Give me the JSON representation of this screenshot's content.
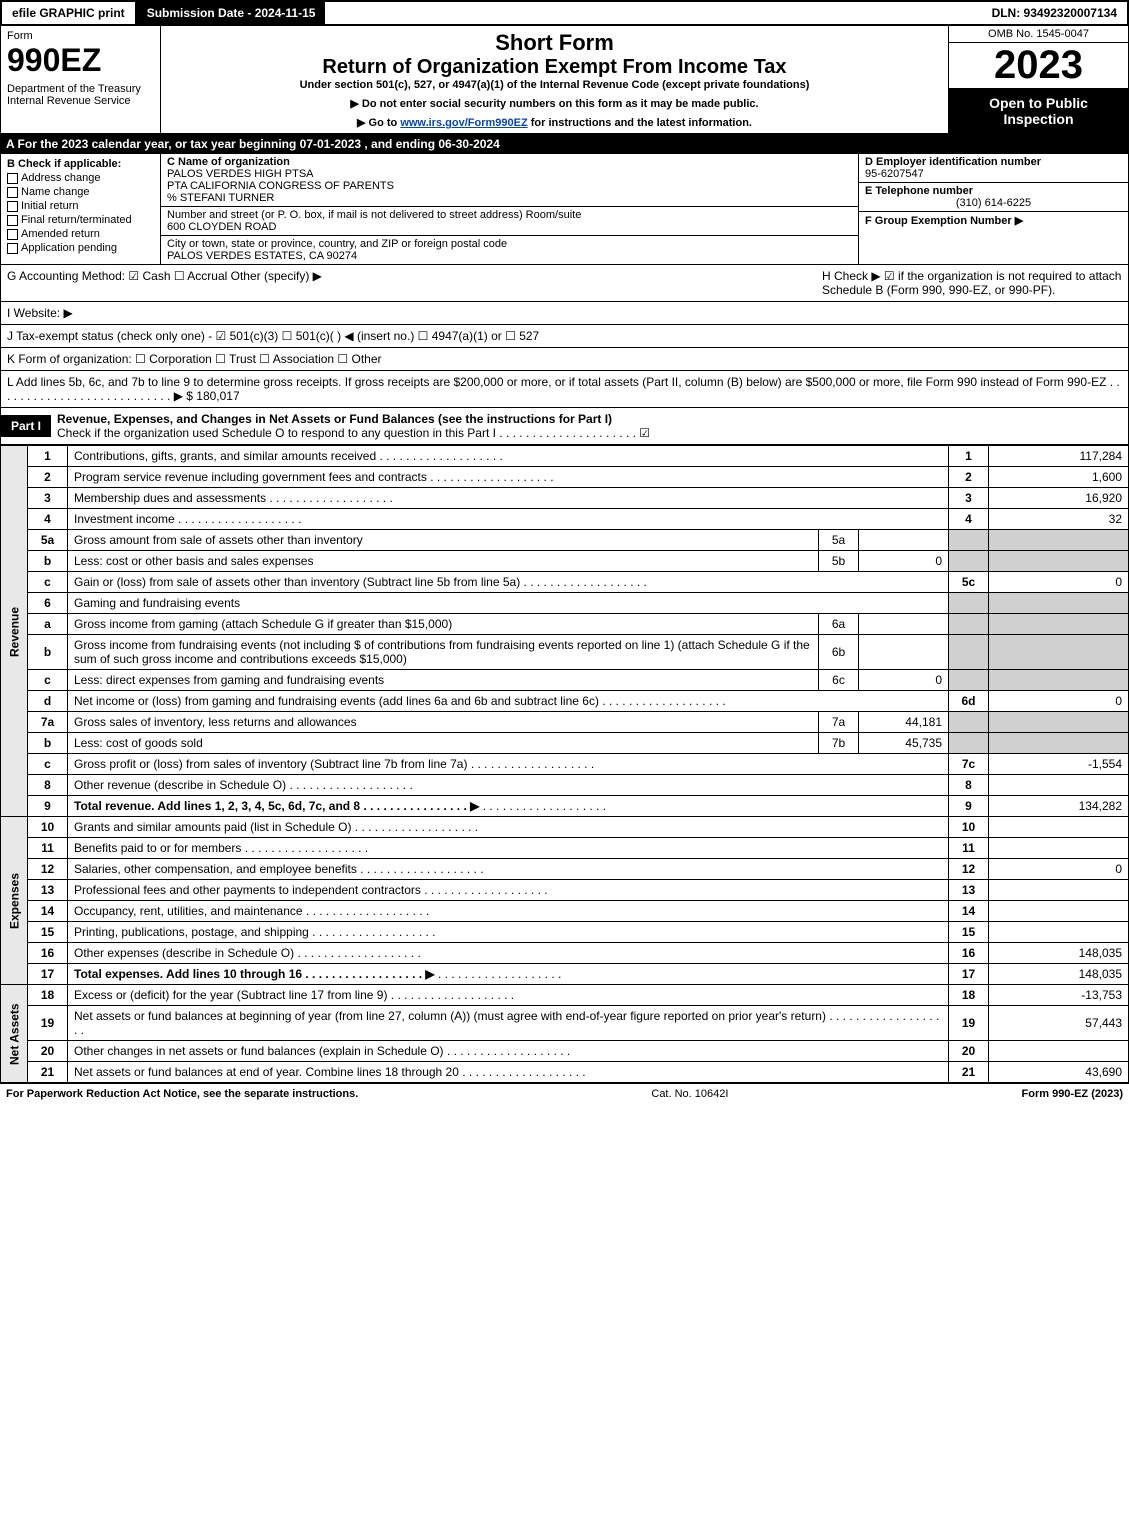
{
  "topbar": {
    "efile": "efile GRAPHIC print",
    "subdate": "Submission Date - 2024-11-15",
    "dln": "DLN: 93492320007134"
  },
  "hdr": {
    "form": "Form",
    "num": "990EZ",
    "dept": "Department of the Treasury\nInternal Revenue Service",
    "t1": "Short Form",
    "t2": "Return of Organization Exempt From Income Tax",
    "sub": "Under section 501(c), 527, or 4947(a)(1) of the Internal Revenue Code (except private foundations)",
    "note1": "▶ Do not enter social security numbers on this form as it may be made public.",
    "note2": "▶ Go to www.irs.gov/Form990EZ for instructions and the latest information.",
    "omb": "OMB No. 1545-0047",
    "yr": "2023",
    "badge": "Open to Public Inspection"
  },
  "A": "A  For the 2023 calendar year, or tax year beginning 07-01-2023 , and ending 06-30-2024",
  "B": {
    "hdr": "B  Check if applicable:",
    "opts": [
      "Address change",
      "Name change",
      "Initial return",
      "Final return/terminated",
      "Amended return",
      "Application pending"
    ]
  },
  "C": {
    "label": "C Name of organization",
    "name": "PALOS VERDES HIGH PTSA\nPTA CALIFORNIA CONGRESS OF PARENTS\n% STEFANI TURNER",
    "street_label": "Number and street (or P. O. box, if mail is not delivered to street address)       Room/suite",
    "street": "600 CLOYDEN ROAD",
    "city_label": "City or town, state or province, country, and ZIP or foreign postal code",
    "city": "PALOS VERDES ESTATES, CA  90274"
  },
  "D": {
    "label": "D Employer identification number",
    "val": "95-6207547"
  },
  "E": {
    "label": "E Telephone number",
    "val": "(310) 614-6225"
  },
  "F": {
    "label": "F Group Exemption Number  ▶",
    "val": ""
  },
  "G": "G Accounting Method:  ☑ Cash  ☐ Accrual   Other (specify) ▶",
  "H": "H   Check ▶ ☑ if the organization is not required to attach Schedule B (Form 990, 990-EZ, or 990-PF).",
  "I": "I Website: ▶",
  "J": "J Tax-exempt status (check only one) - ☑ 501(c)(3) ☐ 501(c)(  ) ◀ (insert no.) ☐ 4947(a)(1) or ☐ 527",
  "K": "K Form of organization:  ☐ Corporation  ☐ Trust  ☐ Association  ☐ Other",
  "L": "L Add lines 5b, 6c, and 7b to line 9 to determine gross receipts. If gross receipts are $200,000 or more, or if total assets (Part II, column (B) below) are $500,000 or more, file Form 990 instead of Form 990-EZ  . . . . . . . . . . . . . . . . . . . . . . . . . . . ▶ $ 180,017",
  "part1": {
    "tag": "Part I",
    "desc": "Revenue, Expenses, and Changes in Net Assets or Fund Balances (see the instructions for Part I)",
    "check": "Check if the organization used Schedule O to respond to any question in this Part I . . . . . . . . . . . . . . . . . . . . . ☑"
  },
  "sections": {
    "revenue": "Revenue",
    "expenses": "Expenses",
    "netassets": "Net Assets"
  },
  "rows": [
    {
      "n": "1",
      "t": "Contributions, gifts, grants, and similar amounts received",
      "r": "1",
      "v": "117,284"
    },
    {
      "n": "2",
      "t": "Program service revenue including government fees and contracts",
      "r": "2",
      "v": "1,600"
    },
    {
      "n": "3",
      "t": "Membership dues and assessments",
      "r": "3",
      "v": "16,920"
    },
    {
      "n": "4",
      "t": "Investment income",
      "r": "4",
      "v": "32"
    },
    {
      "n": "5a",
      "t": "Gross amount from sale of assets other than inventory",
      "m": "5a",
      "mv": ""
    },
    {
      "n": "b",
      "t": "Less: cost or other basis and sales expenses",
      "m": "5b",
      "mv": "0"
    },
    {
      "n": "c",
      "t": "Gain or (loss) from sale of assets other than inventory (Subtract line 5b from line 5a)",
      "r": "5c",
      "v": "0"
    },
    {
      "n": "6",
      "t": "Gaming and fundraising events",
      "grey": true
    },
    {
      "n": "a",
      "t": "Gross income from gaming (attach Schedule G if greater than $15,000)",
      "m": "6a",
      "mv": ""
    },
    {
      "n": "b",
      "t": "Gross income from fundraising events (not including $                of contributions from fundraising events reported on line 1) (attach Schedule G if the sum of such gross income and contributions exceeds $15,000)",
      "m": "6b",
      "mv": ""
    },
    {
      "n": "c",
      "t": "Less: direct expenses from gaming and fundraising events",
      "m": "6c",
      "mv": "0"
    },
    {
      "n": "d",
      "t": "Net income or (loss) from gaming and fundraising events (add lines 6a and 6b and subtract line 6c)",
      "r": "6d",
      "v": "0"
    },
    {
      "n": "7a",
      "t": "Gross sales of inventory, less returns and allowances",
      "m": "7a",
      "mv": "44,181"
    },
    {
      "n": "b",
      "t": "Less: cost of goods sold",
      "m": "7b",
      "mv": "45,735"
    },
    {
      "n": "c",
      "t": "Gross profit or (loss) from sales of inventory (Subtract line 7b from line 7a)",
      "r": "7c",
      "v": "-1,554"
    },
    {
      "n": "8",
      "t": "Other revenue (describe in Schedule O)",
      "r": "8",
      "v": ""
    },
    {
      "n": "9",
      "t": "Total revenue. Add lines 1, 2, 3, 4, 5c, 6d, 7c, and 8   . . . . . . . . . . . . . . . .  ▶",
      "r": "9",
      "v": "134,282",
      "bold": true
    }
  ],
  "exp": [
    {
      "n": "10",
      "t": "Grants and similar amounts paid (list in Schedule O)",
      "r": "10",
      "v": ""
    },
    {
      "n": "11",
      "t": "Benefits paid to or for members",
      "r": "11",
      "v": ""
    },
    {
      "n": "12",
      "t": "Salaries, other compensation, and employee benefits",
      "r": "12",
      "v": "0"
    },
    {
      "n": "13",
      "t": "Professional fees and other payments to independent contractors",
      "r": "13",
      "v": ""
    },
    {
      "n": "14",
      "t": "Occupancy, rent, utilities, and maintenance",
      "r": "14",
      "v": ""
    },
    {
      "n": "15",
      "t": "Printing, publications, postage, and shipping",
      "r": "15",
      "v": ""
    },
    {
      "n": "16",
      "t": "Other expenses (describe in Schedule O)",
      "r": "16",
      "v": "148,035"
    },
    {
      "n": "17",
      "t": "Total expenses. Add lines 10 through 16   . . . . . . . . . . . . . . . . . .  ▶",
      "r": "17",
      "v": "148,035",
      "bold": true
    }
  ],
  "na": [
    {
      "n": "18",
      "t": "Excess or (deficit) for the year (Subtract line 17 from line 9)",
      "r": "18",
      "v": "-13,753"
    },
    {
      "n": "19",
      "t": "Net assets or fund balances at beginning of year (from line 27, column (A)) (must agree with end-of-year figure reported on prior year's return)",
      "r": "19",
      "v": "57,443"
    },
    {
      "n": "20",
      "t": "Other changes in net assets or fund balances (explain in Schedule O)",
      "r": "20",
      "v": ""
    },
    {
      "n": "21",
      "t": "Net assets or fund balances at end of year. Combine lines 18 through 20",
      "r": "21",
      "v": "43,690"
    }
  ],
  "footer": {
    "left": "For Paperwork Reduction Act Notice, see the separate instructions.",
    "mid": "Cat. No. 10642I",
    "right": "Form 990-EZ (2023)"
  }
}
